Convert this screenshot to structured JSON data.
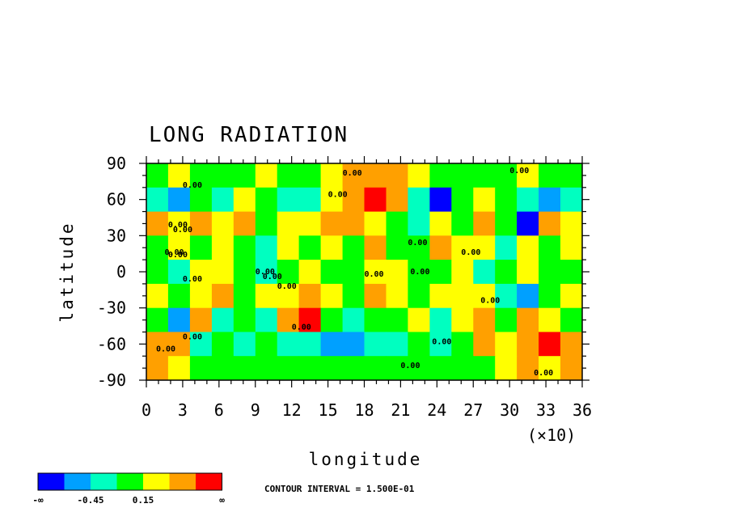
{
  "chart_data": {
    "type": "heatmap",
    "title": "LONG RADIATION",
    "xlabel": "longitude",
    "ylabel": "latitude",
    "x_multiplier": "(×10)",
    "xlim": [
      0,
      36
    ],
    "ylim": [
      -90,
      90
    ],
    "x_ticks": [
      "0",
      "3",
      "6",
      "9",
      "12",
      "15",
      "18",
      "21",
      "24",
      "27",
      "30",
      "33",
      "36"
    ],
    "y_ticks": [
      "90",
      "60",
      "30",
      "0",
      "-30",
      "-60",
      "-90"
    ],
    "contour_interval_text": "CONTOUR INTERVAL = 1.500E-01",
    "colorbar": {
      "colors": [
        "#0000ff",
        "#00a0ff",
        "#00ffc0",
        "#00ff00",
        "#ffff00",
        "#ffa000",
        "#ff0000"
      ],
      "labels": [
        "-∞",
        "-0.45",
        "0.15",
        "∞"
      ]
    },
    "contour_label": "0.00",
    "cell_labels": {
      "lon": [
        0,
        18,
        36,
        54,
        72,
        90,
        108,
        126,
        144,
        162,
        180,
        198,
        216,
        234,
        252,
        270,
        288,
        306,
        324,
        342
      ],
      "lat": [
        80,
        60,
        40,
        20,
        0,
        -20,
        -40,
        -60,
        -80
      ]
    },
    "grid": [
      [
        0.05,
        0.15,
        0.05,
        0.05,
        0.05,
        0.15,
        0.05,
        0.05,
        0.25,
        0.35,
        0.4,
        0.3,
        0.15,
        0.05,
        0.05,
        0.05,
        0.05,
        0.15,
        0.05,
        0.05
      ],
      [
        -0.3,
        -0.45,
        0.05,
        -0.15,
        0.15,
        0.05,
        -0.2,
        -0.15,
        0.15,
        0.45,
        0.75,
        0.35,
        -0.3,
        -0.5,
        0.05,
        0.15,
        0.05,
        -0.3,
        -0.4,
        -0.3
      ],
      [
        0.35,
        0.2,
        0.35,
        0.15,
        0.55,
        0.05,
        0.15,
        0.2,
        0.55,
        0.4,
        0.15,
        0.05,
        -0.3,
        0.25,
        0.1,
        0.35,
        0.05,
        -0.5,
        0.4,
        0.2
      ],
      [
        0.1,
        0.15,
        0.05,
        0.2,
        0.05,
        -0.15,
        0.15,
        0.05,
        0.15,
        0.1,
        0.3,
        0.05,
        0.05,
        0.3,
        0.15,
        0.15,
        -0.15,
        0.2,
        0.1,
        0.15
      ],
      [
        0.05,
        -0.15,
        0.15,
        0.15,
        0.05,
        -0.15,
        0.05,
        0.2,
        0.05,
        0.05,
        0.2,
        0.15,
        0.05,
        0.05,
        0.15,
        -0.15,
        0.05,
        0.25,
        0.1,
        0.05
      ],
      [
        0.15,
        0.1,
        0.25,
        0.5,
        0.05,
        0.15,
        0.2,
        0.5,
        0.15,
        0.05,
        0.35,
        0.2,
        0.05,
        0.15,
        0.25,
        0.15,
        -0.15,
        -0.4,
        0.05,
        0.15
      ],
      [
        0.05,
        -0.45,
        0.3,
        -0.15,
        0.05,
        -0.15,
        0.35,
        0.65,
        0.05,
        -0.15,
        0.05,
        0.05,
        0.15,
        -0.15,
        0.25,
        0.35,
        0.05,
        0.35,
        0.25,
        0.1
      ],
      [
        0.55,
        0.4,
        -0.15,
        0.05,
        -0.3,
        0.05,
        -0.15,
        -0.2,
        -0.35,
        -0.45,
        -0.3,
        -0.3,
        0.1,
        -0.15,
        0.05,
        0.3,
        0.2,
        0.35,
        0.6,
        0.45
      ],
      [
        0.35,
        0.15,
        0.05,
        0.05,
        0.05,
        0.05,
        0.05,
        0.05,
        0.05,
        0.05,
        0.05,
        0.05,
        0.05,
        0.05,
        0.05,
        0.05,
        0.15,
        0.3,
        0.2,
        0.35
      ]
    ]
  }
}
